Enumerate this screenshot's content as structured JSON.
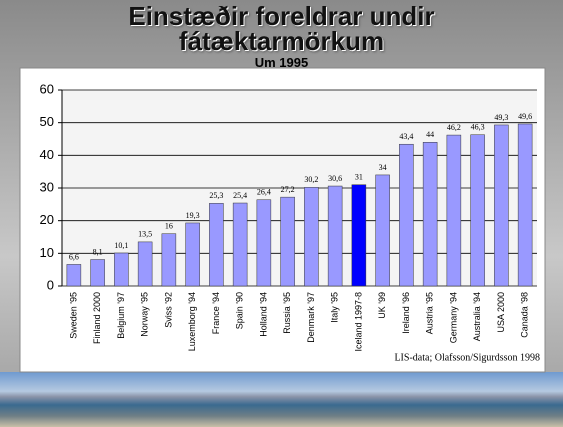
{
  "chart_data": {
    "type": "bar",
    "title": "Einstæðir foreldrar undir fátæktarmörkum",
    "subtitle": "Um 1995",
    "note": "LIS-data; Olafsson/Sigurdsson 1998",
    "categories": [
      "Sweden '95",
      "Finland 2000",
      "Belgium '97",
      "Norway '95",
      "Sviss '92",
      "Luxemborg '94",
      "France '94",
      "Spain '90",
      "Holland '94",
      "Russia '95",
      "Denmark '97",
      "Italy '95",
      "Iceland 1997-8",
      "UK '99",
      "Ireland '96",
      "Austria '95",
      "Germany '94",
      "Australia '94",
      "USA 2000",
      "Canada '98"
    ],
    "values": [
      6.6,
      8.1,
      10.1,
      13.5,
      16,
      19.3,
      25.3,
      25.4,
      26.4,
      27.2,
      30.2,
      30.6,
      31,
      34,
      43.4,
      44,
      46.2,
      46.3,
      49.3,
      49.6
    ],
    "value_labels": [
      "6,6",
      "8,1",
      "10,1",
      "13,5",
      "16",
      "19,3",
      "25,3",
      "25,4",
      "26,4",
      "27,2",
      "30,2",
      "30,6",
      "31",
      "34",
      "43,4",
      "44",
      "46,2",
      "46,3",
      "49,3",
      "49,6"
    ],
    "colors": [
      "#9999ff",
      "#9999ff",
      "#9999ff",
      "#9999ff",
      "#9999ff",
      "#9999ff",
      "#9999ff",
      "#9999ff",
      "#9999ff",
      "#9999ff",
      "#9999ff",
      "#9999ff",
      "#0000ff",
      "#9999ff",
      "#9999ff",
      "#9999ff",
      "#9999ff",
      "#9999ff",
      "#9999ff",
      "#9999ff"
    ],
    "ylim": [
      0,
      60
    ],
    "yticks": [
      0,
      10,
      20,
      30,
      40,
      50,
      60
    ],
    "grid": true
  }
}
